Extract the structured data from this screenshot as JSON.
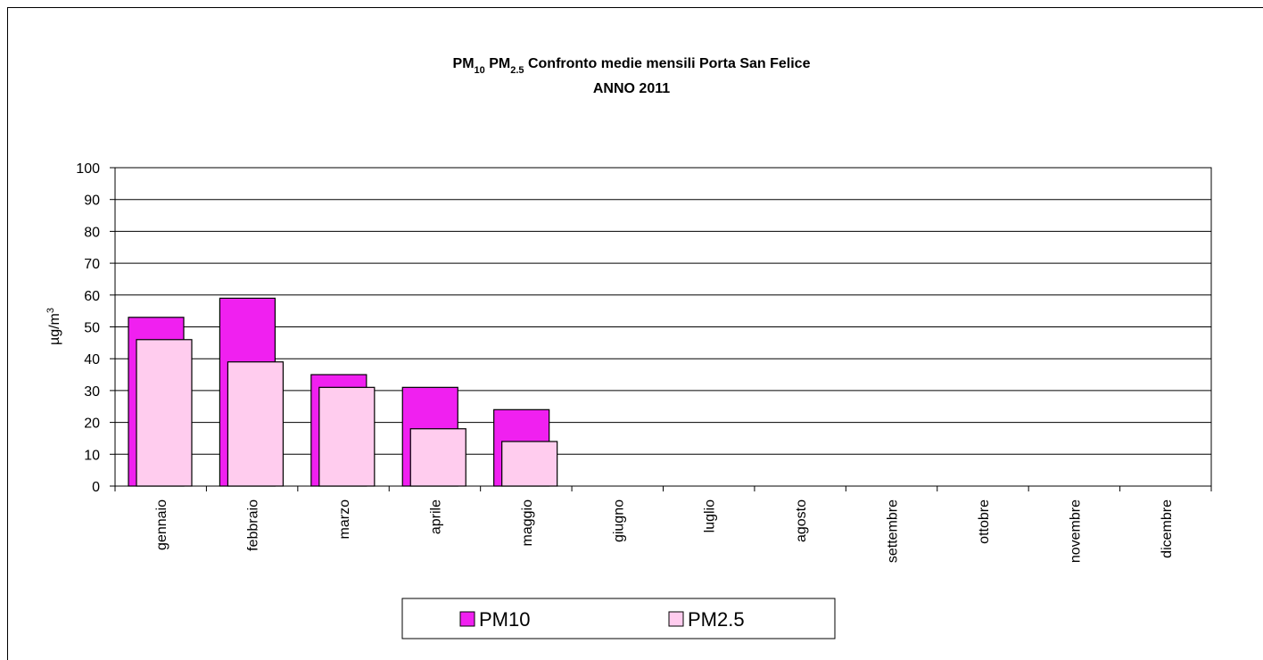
{
  "chart_data": {
    "type": "bar",
    "title": [
      {
        "text": "PM"
      },
      {
        "text": "10",
        "subscript": true
      },
      {
        "text": " PM"
      },
      {
        "text": "2.5",
        "subscript": true
      },
      {
        "text": " Confronto medie mensili Porta San Felice"
      }
    ],
    "subtitle": "ANNO 2011",
    "y_label": [
      {
        "text": "µg/m"
      },
      {
        "text": "3",
        "superscript": true
      }
    ],
    "categories": [
      "gennaio",
      "febbraio",
      "marzo",
      "aprile",
      "maggio",
      "giugno",
      "luglio",
      "agosto",
      "settembre",
      "ottobre",
      "novembre",
      "dicembre"
    ],
    "series": [
      {
        "name": "PM10",
        "color": "#f020f0",
        "values": [
          53,
          59,
          35,
          31,
          24,
          null,
          null,
          null,
          null,
          null,
          null,
          null
        ]
      },
      {
        "name": "PM2.5",
        "color": "#ffccee",
        "values": [
          46,
          39,
          31,
          18,
          14,
          null,
          null,
          null,
          null,
          null,
          null,
          null
        ]
      }
    ],
    "ylim": [
      0,
      100
    ],
    "yticks": [
      0,
      10,
      20,
      30,
      40,
      50,
      60,
      70,
      80,
      90,
      100
    ],
    "grid": true,
    "legend": "bottom"
  }
}
